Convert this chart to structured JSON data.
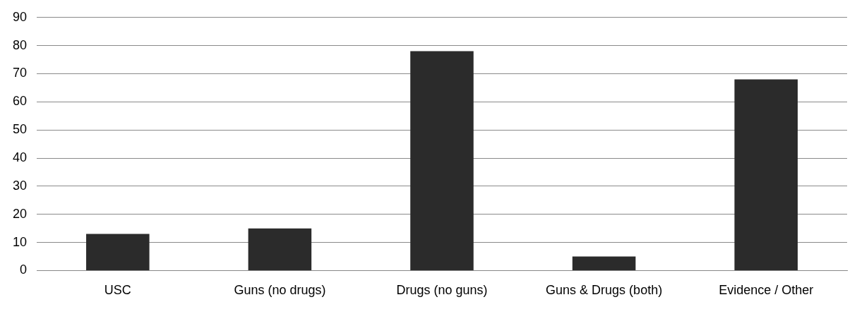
{
  "chart_data": {
    "type": "bar",
    "categories": [
      "USC",
      "Guns (no drugs)",
      "Drugs (no guns)",
      "Guns & Drugs (both)",
      "Evidence / Other"
    ],
    "values": [
      13,
      15,
      78,
      5,
      68
    ],
    "color": "#2b2b2b",
    "ylim": [
      0,
      90
    ],
    "yticks": [
      0,
      10,
      20,
      30,
      40,
      50,
      60,
      70,
      80,
      90
    ],
    "grid": "y",
    "legend": false
  }
}
